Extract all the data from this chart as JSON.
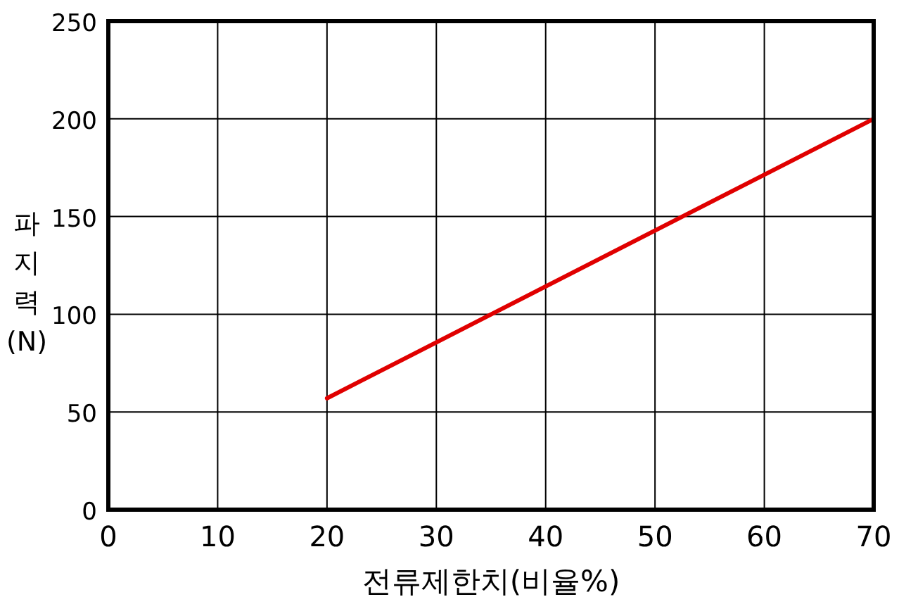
{
  "chart_data": {
    "type": "line",
    "xlabel": "전류제한치(비율%)",
    "ylabel": "파지력(N)",
    "x": [
      20,
      70
    ],
    "series": [
      {
        "color": "#e00000",
        "values": [
          57,
          200
        ]
      }
    ],
    "xlim": [
      0,
      70
    ],
    "ylim": [
      0,
      250
    ],
    "xticks": [
      0,
      10,
      20,
      30,
      40,
      50,
      60,
      70
    ],
    "yticks": [
      0,
      50,
      100,
      150,
      200,
      250
    ],
    "grid": true,
    "marker": "none",
    "line_style": "solid"
  }
}
